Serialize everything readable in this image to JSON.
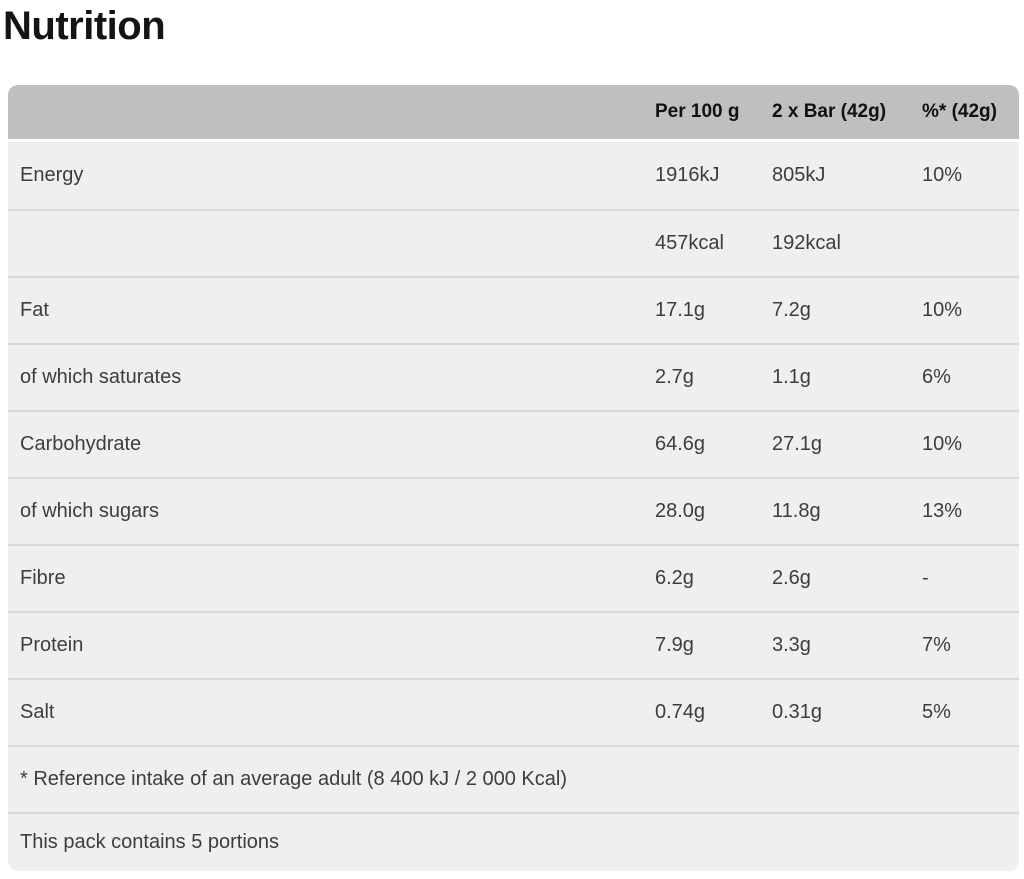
{
  "page": {
    "title": "Nutrition"
  },
  "table": {
    "columns": {
      "per100": "Per 100 g",
      "perBar": "2 x Bar (42g)",
      "percent": "%* (42g)"
    },
    "rows": [
      {
        "label": "Energy",
        "per100": "1916kJ",
        "perBar": "805kJ",
        "percent": "10%"
      },
      {
        "label": "",
        "per100": "457kcal",
        "perBar": "192kcal",
        "percent": ""
      },
      {
        "label": "Fat",
        "per100": "17.1g",
        "perBar": "7.2g",
        "percent": "10%"
      },
      {
        "label": "of which saturates",
        "per100": "2.7g",
        "perBar": "1.1g",
        "percent": "6%"
      },
      {
        "label": "Carbohydrate",
        "per100": "64.6g",
        "perBar": "27.1g",
        "percent": "10%"
      },
      {
        "label": "of which sugars",
        "per100": "28.0g",
        "perBar": "11.8g",
        "percent": "13%"
      },
      {
        "label": "Fibre",
        "per100": "6.2g",
        "perBar": "2.6g",
        "percent": "-"
      },
      {
        "label": "Protein",
        "per100": "7.9g",
        "perBar": "3.3g",
        "percent": "7%"
      },
      {
        "label": "Salt",
        "per100": "0.74g",
        "perBar": "0.31g",
        "percent": "5%"
      }
    ],
    "footnotes": [
      "* Reference intake of an average adult (8 400 kJ / 2 000 Kcal)",
      "This pack contains 5 portions"
    ]
  },
  "colors": {
    "header_bg": "#c0bfbf",
    "row_bg": "#f0efee",
    "separator": "#d9d7d5",
    "body_text": "#3e3d3b",
    "header_text": "#111111",
    "title_text": "#141414"
  }
}
